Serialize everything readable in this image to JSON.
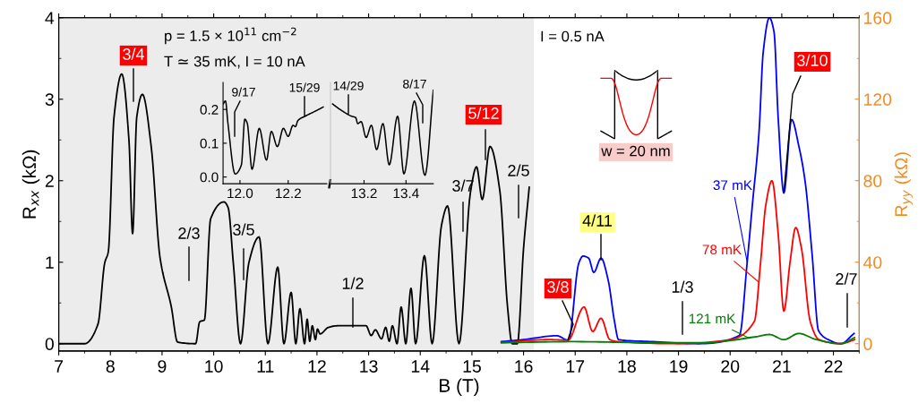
{
  "chart_data": [
    {
      "type": "line",
      "xlabel": "B (T)",
      "ylabel": "R$_{xx}$ (kΩ)",
      "y2label": "R$_{yy}$ (kΩ)",
      "xlim": [
        7,
        22.5
      ],
      "xticks": [
        7,
        8,
        9,
        10,
        11,
        12,
        13,
        14,
        15,
        16,
        17,
        18,
        19,
        20,
        21,
        22
      ],
      "ylim": [
        -0.09,
        4
      ],
      "yticks": [
        0,
        1,
        2,
        3,
        4
      ],
      "y2lim": [
        -3.6,
        160
      ],
      "y2ticks": [
        0,
        40,
        80,
        120,
        160
      ],
      "bands": [
        {
          "axis": "x",
          "from": 7,
          "to": 16.2,
          "color": "#ececec"
        }
      ],
      "series": [
        {
          "color": "#000000",
          "x": [
            7.0,
            7.5,
            7.76,
            7.89,
            7.96,
            8.07,
            8.22,
            8.36,
            8.43,
            8.51,
            8.62,
            8.79,
            8.96,
            9.18,
            9.3,
            9.65,
            9.73,
            9.82,
            9.94,
            10.2,
            10.28,
            10.38,
            10.52,
            10.68,
            10.88,
            11.05,
            11.24,
            11.36,
            11.5,
            11.59,
            11.67,
            11.76,
            11.81,
            11.86,
            11.91,
            11.97,
            12.01,
            12.06,
            12.22,
            12.4,
            12.95,
            13.05,
            13.13,
            13.25,
            13.33,
            13.4,
            13.46,
            13.55,
            13.63,
            13.72,
            13.82,
            13.91,
            14.08,
            14.23,
            14.41,
            14.53,
            14.75,
            14.97,
            15.09,
            15.2,
            15.35,
            15.54,
            15.69,
            15.78,
            15.88,
            16.0,
            16.11
          ],
          "values": [
            0,
            0,
            0.24,
            0.99,
            1.13,
            2.78,
            3.31,
            2.49,
            1.35,
            2.78,
            3.06,
            2.42,
            1.06,
            0.45,
            0.02,
            0,
            0.27,
            0.29,
            1.53,
            1.74,
            1.67,
            0.99,
            0,
            0.99,
            1.31,
            0,
            0.94,
            0,
            0.63,
            0,
            0.43,
            0,
            0.3,
            0.03,
            0.22,
            0.05,
            0.18,
            0.12,
            0.2,
            0.22,
            0.22,
            0.1,
            0.17,
            0.06,
            0.2,
            0.03,
            0.22,
            0,
            0.45,
            0,
            0.68,
            0,
            1.08,
            0,
            1.45,
            1.69,
            0,
            1.85,
            2.17,
            1.77,
            2.42,
            1.88,
            0.45,
            0,
            0,
            1.17,
            1.92
          ]
        },
        {
          "name": "37 mK",
          "color": "#0000ff",
          "axis": "y2",
          "x": [
            15.57,
            16.0,
            16.64,
            16.87,
            17.07,
            17.15,
            17.26,
            17.36,
            17.5,
            17.64,
            17.76,
            17.84,
            18.5,
            19.39,
            20.18,
            20.33,
            20.43,
            20.56,
            20.64,
            20.76,
            20.85,
            20.93,
            21.04,
            21.19,
            21.33,
            21.45,
            21.59,
            21.71,
            21.9,
            22.14,
            22.4
          ],
          "values": [
            1,
            2,
            3.9,
            1.7,
            39.6,
            43,
            42,
            35,
            42,
            31,
            11,
            2,
            1,
            0,
            4,
            40,
            68,
            104,
            143,
            160,
            153,
            111,
            74,
            110,
            97,
            80,
            43,
            6.5,
            2,
            0,
            5
          ]
        },
        {
          "name": "78 mK",
          "color": "#ff0000",
          "axis": "y2",
          "x": [
            15.57,
            16.5,
            16.86,
            17.17,
            17.34,
            17.5,
            17.67,
            17.84,
            19.0,
            20.0,
            20.47,
            20.59,
            20.69,
            20.81,
            20.93,
            21.04,
            21.16,
            21.27,
            21.38,
            21.55,
            21.72,
            22.14,
            22.41
          ],
          "values": [
            0.5,
            2,
            1.7,
            18,
            6,
            12.5,
            2,
            1,
            0,
            2,
            11,
            40,
            68,
            80,
            54,
            16,
            40,
            57,
            47,
            11,
            2,
            0,
            2
          ]
        },
        {
          "name": "121 mK",
          "color": "#008000",
          "axis": "y2",
          "x": [
            15.57,
            17.0,
            18.5,
            19.5,
            20.52,
            20.76,
            21.04,
            21.33,
            21.67,
            22.14,
            22.41
          ],
          "values": [
            0.5,
            1,
            0.5,
            0.5,
            3.5,
            4.5,
            2,
            5,
            2,
            0,
            3
          ]
        }
      ],
      "annotations": [
        "p = 1.5 × 10$^{11}$ cm$^{−2}$",
        "T ≃ 35 mK, I = 10 nA",
        "I = 0.5 nA",
        "w = 20 nm",
        "3/4",
        "2/3",
        "3/5",
        "1/2",
        "3/7",
        "5/12",
        "2/5",
        {
          "text": "3/8",
          "x": 16.86,
          "y": 0.05
        },
        "4/11",
        "1/3",
        {
          "text": "3/10",
          "x": 21.04,
          "y": 1.85
        },
        "2/7"
      ]
    },
    {
      "type": "line",
      "xlim": [
        11.93,
        12.36
      ],
      "xticks": [
        {
          "value": 12,
          "label": "12.0"
        },
        12.2
      ],
      "ylim": [
        -0.02,
        0.28
      ],
      "yticks": [
        {
          "value": 0,
          "label": "0.0"
        },
        0.1,
        0.2
      ],
      "series": [
        {
          "color": "#000000",
          "x": [
            11.93,
            11.94,
            11.95,
            11.98,
            12.006,
            12.02,
            12.03,
            12.05,
            12.08,
            12.11,
            12.13,
            12.155,
            12.18,
            12.2,
            12.22,
            12.23,
            12.24,
            12.27,
            12.31,
            12.345
          ],
          "values": [
            0.216,
            0.225,
            0.16,
            0.009,
            0.036,
            0.171,
            0.16,
            0.023,
            0.144,
            0.05,
            0.135,
            0.09,
            0.144,
            0.12,
            0.153,
            0.149,
            0.167,
            0.18,
            0.194,
            0.207
          ]
        }
      ],
      "annotations": [
        "9/17",
        "15/29"
      ]
    },
    {
      "type": "line",
      "xlim": [
        13.04,
        13.53
      ],
      "xticks": [
        13.2,
        13.4
      ],
      "ylim": [
        -0.02,
        0.28
      ],
      "yticks": [
        0,
        0.1,
        0.2
      ],
      "tick_labels": "x",
      "series": [
        {
          "color": "#000000",
          "x": [
            13.05,
            13.09,
            13.14,
            13.16,
            13.17,
            13.186,
            13.21,
            13.235,
            13.26,
            13.29,
            13.32,
            13.36,
            13.39,
            13.44,
            13.49,
            13.53
          ],
          "values": [
            0.216,
            0.198,
            0.18,
            0.176,
            0.158,
            0.164,
            0.117,
            0.153,
            0.081,
            0.158,
            0.036,
            0.18,
            0.009,
            0.225,
            0.005,
            0.257
          ]
        }
      ],
      "annotations": [
        "14/29",
        "8/17"
      ]
    }
  ]
}
